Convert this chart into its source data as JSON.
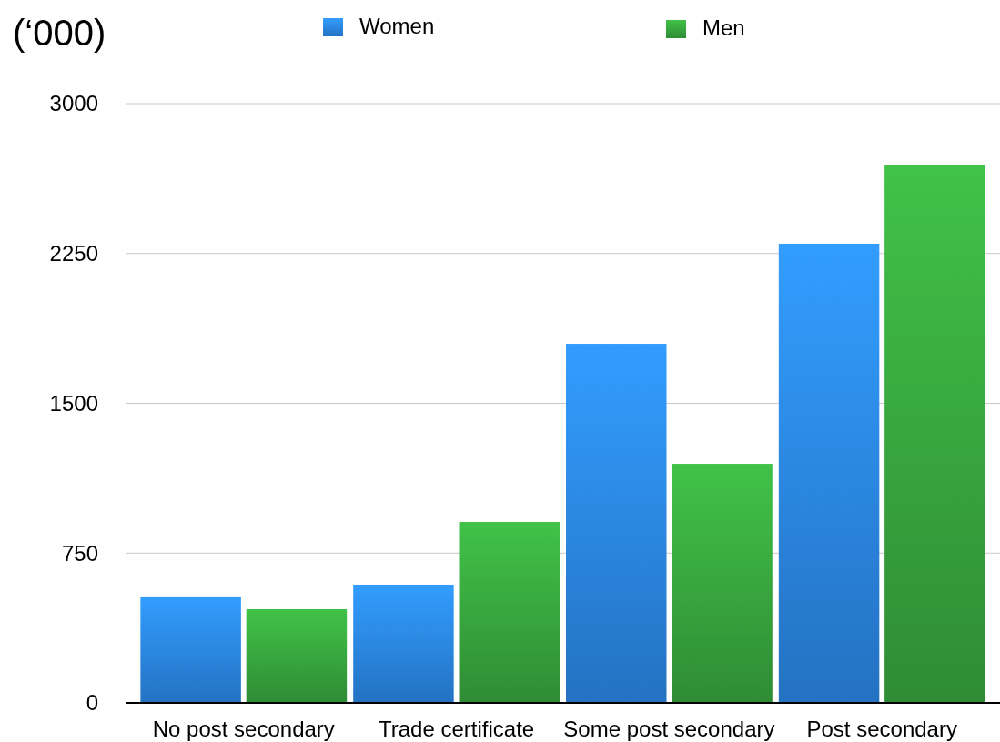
{
  "chart_data": {
    "type": "bar",
    "ylabel": "(‘000)",
    "categories": [
      "No post secondary",
      "Trade certificate",
      "Some post secondary",
      "Post secondary"
    ],
    "series": [
      {
        "name": "Women",
        "color": "#2a83e0",
        "values": [
          533,
          592,
          1798,
          2299
        ]
      },
      {
        "name": "Men",
        "color": "#36a23c",
        "values": [
          469,
          906,
          1197,
          2695
        ]
      }
    ],
    "ylim": [
      0,
      3000
    ],
    "yticks": [
      0,
      750,
      1500,
      2250,
      3000
    ],
    "grid": "y",
    "legend": "top"
  }
}
